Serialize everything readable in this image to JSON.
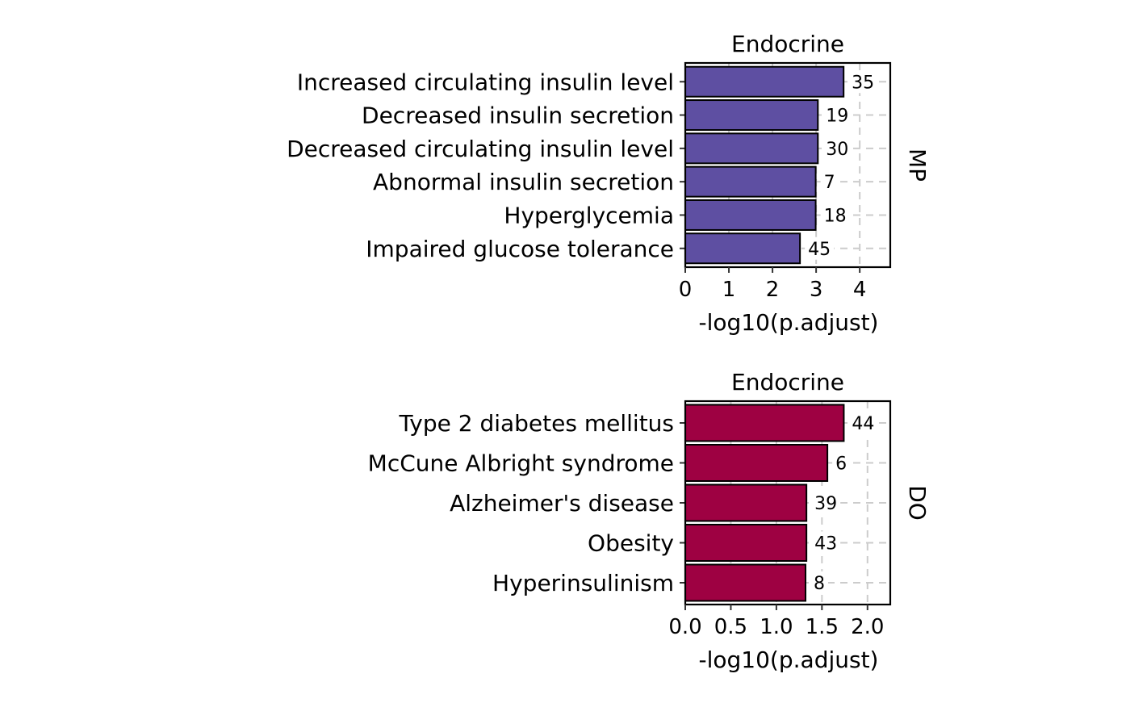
{
  "chart_data": [
    {
      "type": "bar",
      "orientation": "horizontal",
      "title": "Endocrine",
      "strip_label": "MP",
      "xlabel": "-log10(p.adjust)",
      "xlim": [
        0,
        4.7
      ],
      "xticks": [
        0,
        1,
        2,
        3,
        4
      ],
      "xtick_labels": [
        "0",
        "1",
        "2",
        "3",
        "4"
      ],
      "bar_color": "#5e4fa2",
      "categories": [
        "Increased circulating insulin level",
        "Decreased insulin secretion",
        "Decreased circulating insulin level",
        "Abnormal insulin secretion",
        "Hyperglycemia",
        "Impaired glucose tolerance"
      ],
      "values": [
        3.63,
        3.04,
        3.04,
        2.99,
        2.99,
        2.63
      ],
      "labels": [
        "35",
        "19",
        "30",
        "7",
        "18",
        "45"
      ],
      "grid": "dashed vertical"
    },
    {
      "type": "bar",
      "orientation": "horizontal",
      "title": "Endocrine",
      "strip_label": "DO",
      "xlabel": "-log10(p.adjust)",
      "xlim": [
        0,
        2.25
      ],
      "xticks": [
        0.0,
        0.5,
        1.0,
        1.5,
        2.0
      ],
      "xtick_labels": [
        "0.0",
        "0.5",
        "1.0",
        "1.5",
        "2.0"
      ],
      "bar_color": "#9e0142",
      "categories": [
        "Type 2 diabetes mellitus",
        "McCune Albright syndrome",
        "Alzheimer's disease",
        "Obesity",
        "Hyperinsulinism"
      ],
      "values": [
        1.74,
        1.56,
        1.33,
        1.33,
        1.32
      ],
      "labels": [
        "44",
        "6",
        "39",
        "43",
        "8"
      ],
      "grid": "dashed vertical"
    }
  ]
}
